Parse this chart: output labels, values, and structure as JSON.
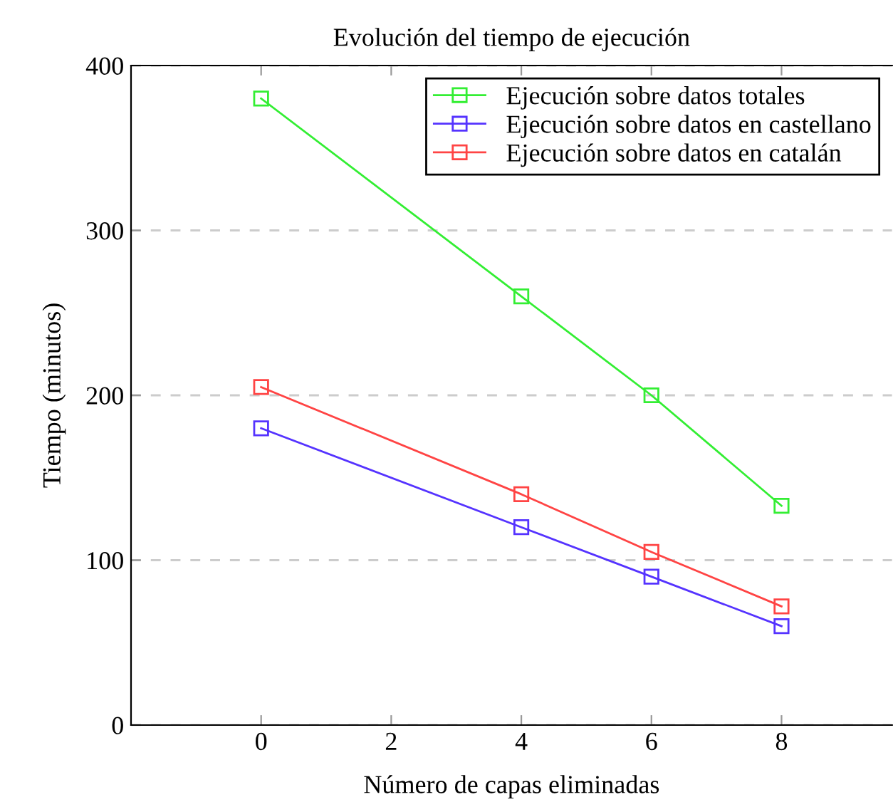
{
  "chart_data": {
    "type": "line",
    "title": "Evolución del tiempo de ejecución",
    "xlabel": "Número de capas eliminadas",
    "ylabel": "Tiempo (minutos)",
    "x": [
      0,
      4,
      6,
      8
    ],
    "series": [
      {
        "name": "Ejecución sobre datos totales",
        "color": "#33ee33",
        "values": [
          380,
          260,
          200,
          133
        ]
      },
      {
        "name": "Ejecución sobre datos en castellano",
        "color": "#5533ff",
        "values": [
          180,
          120,
          90,
          60
        ]
      },
      {
        "name": "Ejecución sobre datos en catalán",
        "color": "#ff4444",
        "values": [
          205,
          140,
          105,
          72
        ]
      }
    ],
    "xlim": [
      -2,
      9.7
    ],
    "xticks": [
      0,
      2,
      4,
      6,
      8
    ],
    "ylim": [
      0,
      400
    ],
    "yticks": [
      0,
      100,
      200,
      300,
      400
    ],
    "grid": "y",
    "legend": "top right",
    "marker": "square",
    "line_style": "solid"
  }
}
